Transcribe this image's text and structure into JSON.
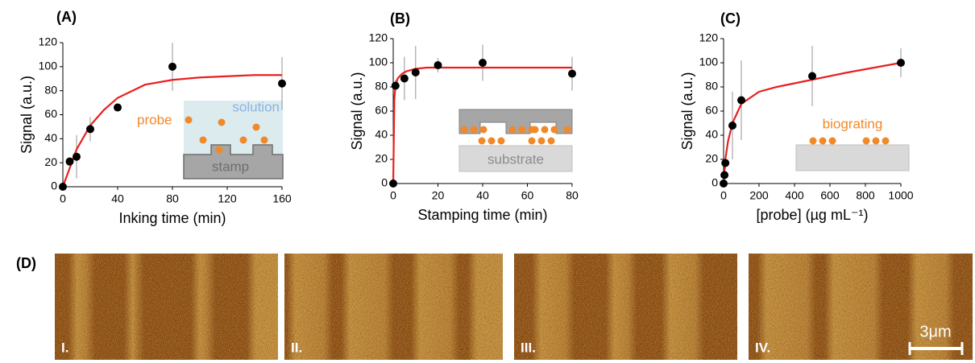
{
  "chart_data": [
    {
      "type": "scatter",
      "label": "(A)",
      "xlabel": "Inking time (min)",
      "ylabel": "Signal (a.u.)",
      "x": [
        0,
        5,
        10,
        20,
        40,
        80,
        160
      ],
      "values": [
        0,
        21,
        25,
        48,
        66,
        100,
        86
      ],
      "errors": [
        0,
        3,
        18,
        10,
        3,
        20,
        22
      ],
      "color": "#000000",
      "fit": {
        "x": [
          0,
          10,
          20,
          30,
          40,
          60,
          80,
          100,
          120,
          140,
          160
        ],
        "values": [
          0,
          31,
          51,
          64,
          74,
          85,
          89,
          91,
          92,
          93,
          93
        ],
        "color": "#e8201f"
      },
      "xlim": [
        0,
        160
      ],
      "xticks": [
        0,
        40,
        80,
        120,
        160
      ],
      "ylim": [
        0,
        120
      ],
      "yticks": [
        0,
        20,
        40,
        60,
        80,
        100,
        120
      ],
      "inset_labels": [
        "probe",
        "solution",
        "stamp"
      ]
    },
    {
      "type": "scatter",
      "label": "(B)",
      "xlabel": "Stamping time (min)",
      "ylabel": "Signal (a.u.)",
      "x": [
        0,
        1,
        5,
        10,
        20,
        40,
        80
      ],
      "values": [
        0,
        81,
        87,
        92,
        98,
        100,
        91
      ],
      "errors": [
        0,
        5,
        18,
        22,
        6,
        15,
        14
      ],
      "color": "#000000",
      "fit": {
        "x": [
          0,
          0.5,
          1,
          2,
          4,
          6,
          10,
          15,
          20,
          40,
          60,
          80
        ],
        "values": [
          0,
          70,
          81,
          87,
          91,
          93,
          95,
          96,
          96,
          96,
          96,
          96
        ],
        "color": "#e8201f"
      },
      "xlim": [
        0,
        80
      ],
      "xticks": [
        0,
        20,
        40,
        60,
        80
      ],
      "ylim": [
        0,
        120
      ],
      "yticks": [
        0,
        20,
        40,
        60,
        80,
        100,
        120
      ],
      "inset_labels": [
        "substrate"
      ]
    },
    {
      "type": "scatter",
      "label": "(C)",
      "xlabel": "[probe] (µg mL⁻¹)",
      "ylabel": "Signal (a.u.)",
      "x": [
        0,
        5,
        10,
        50,
        100,
        500,
        1000
      ],
      "values": [
        0,
        7,
        17,
        48,
        69,
        89,
        100
      ],
      "errors": [
        0,
        3,
        5,
        28,
        33,
        25,
        12
      ],
      "color": "#000000",
      "fit": {
        "x": [
          0,
          10,
          25,
          50,
          100,
          200,
          300,
          500,
          700,
          1000
        ],
        "values": [
          0,
          20,
          35,
          50,
          66,
          76,
          80,
          86,
          92,
          100
        ],
        "color": "#e8201f"
      },
      "xlim": [
        0,
        1000
      ],
      "xticks": [
        0,
        200,
        400,
        600,
        800,
        1000
      ],
      "ylim": [
        0,
        120
      ],
      "yticks": [
        0,
        20,
        40,
        60,
        80,
        100,
        120
      ],
      "inset_labels": [
        "biograting"
      ]
    }
  ],
  "images": {
    "label": "(D)",
    "panels": [
      "I.",
      "II.",
      "III.",
      "IV."
    ],
    "scale_bar": "3μm"
  }
}
